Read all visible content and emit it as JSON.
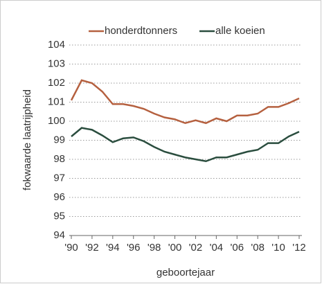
{
  "chart_data": {
    "type": "line",
    "categories": [
      "'90",
      null,
      "'92",
      null,
      "'94",
      null,
      "'96",
      null,
      "'98",
      null,
      "'00",
      null,
      "'02",
      null,
      "'04",
      null,
      "'06",
      null,
      "'08",
      null,
      "'10",
      null,
      "'12"
    ],
    "series": [
      {
        "name": "honderdtonners",
        "color": "#b5603f",
        "values": [
          101.1,
          102.15,
          102.0,
          101.55,
          100.9,
          100.9,
          100.8,
          100.65,
          100.4,
          100.2,
          100.1,
          99.9,
          100.05,
          99.9,
          100.15,
          100.0,
          100.3,
          100.3,
          100.4,
          100.75,
          100.75,
          100.95,
          101.2
        ]
      },
      {
        "name": "alle koeien",
        "color": "#2a4d3e",
        "values": [
          99.2,
          99.65,
          99.55,
          99.25,
          98.9,
          99.1,
          99.15,
          98.95,
          98.65,
          98.4,
          98.25,
          98.1,
          98.0,
          97.9,
          98.1,
          98.1,
          98.25,
          98.4,
          98.5,
          98.85,
          98.85,
          99.2,
          99.45
        ]
      }
    ],
    "y_label": "fokwaarde laatrijpheid",
    "x_label": "geboortejaar",
    "ylim": [
      94,
      104
    ],
    "yticks": [
      94,
      95,
      96,
      97,
      98,
      99,
      100,
      101,
      102,
      103,
      104
    ],
    "grid": true,
    "legend": "top"
  }
}
